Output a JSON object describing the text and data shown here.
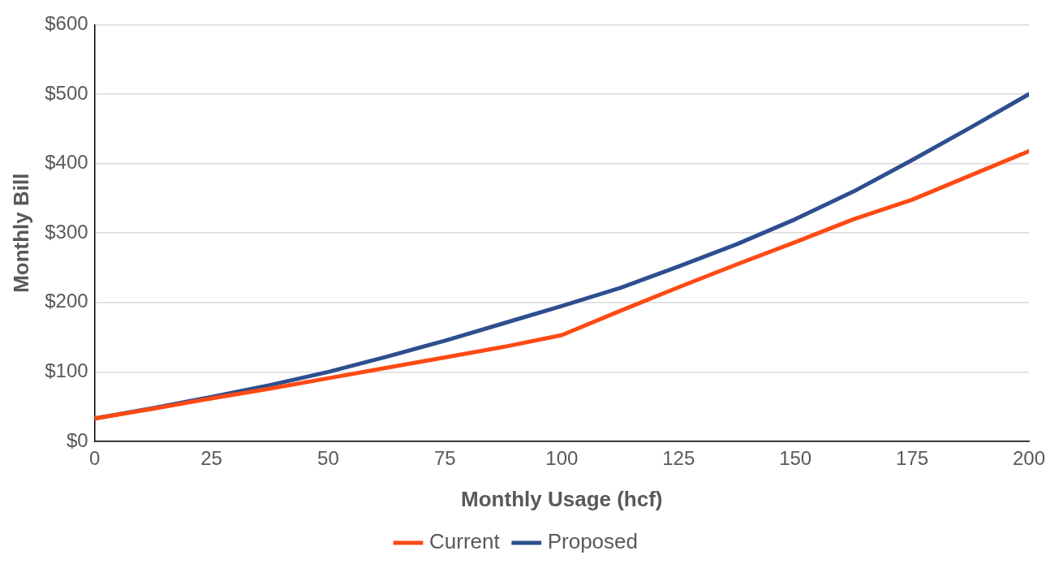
{
  "chart_data": {
    "type": "line",
    "xlabel": "Monthly Usage (hcf)",
    "ylabel": "Monthly Bill",
    "x": [
      0,
      12.5,
      25,
      37.5,
      50,
      62.5,
      75,
      87.5,
      100,
      112.5,
      125,
      137.5,
      150,
      162.5,
      175,
      187.5,
      200
    ],
    "series": [
      {
        "name": "Current",
        "color": "#ff4a14",
        "values": [
          33,
          47,
          62,
          76,
          91,
          106,
          121,
          136,
          153,
          188,
          222,
          255,
          287,
          320,
          348,
          383,
          418
        ]
      },
      {
        "name": "Proposed",
        "color": "#2e4f8f",
        "values": [
          33,
          48,
          64,
          81,
          100,
          122,
          145,
          170,
          195,
          221,
          252,
          284,
          320,
          360,
          405,
          452,
          500
        ]
      }
    ],
    "xlim": [
      0,
      200
    ],
    "xticks": [
      0,
      25,
      50,
      75,
      100,
      125,
      150,
      175,
      200
    ],
    "ylim": [
      0,
      600
    ],
    "yticks": [
      {
        "value": 0,
        "label": "$0"
      },
      {
        "value": 100,
        "label": "$100"
      },
      {
        "value": 200,
        "label": "$200"
      },
      {
        "value": 300,
        "label": "$300"
      },
      {
        "value": 400,
        "label": "$400"
      },
      {
        "value": 500,
        "label": "$500"
      },
      {
        "value": 600,
        "label": "$600"
      }
    ],
    "grid": "y",
    "legend": "bottom",
    "marker": "none",
    "line_style": "solid"
  }
}
